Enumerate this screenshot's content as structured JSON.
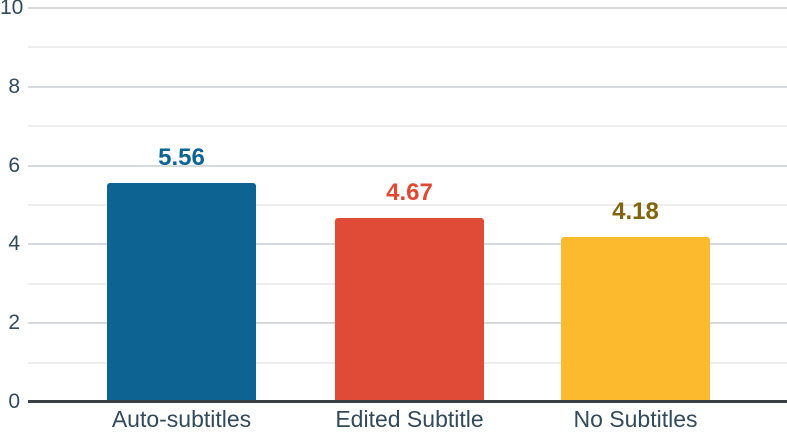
{
  "chart_data": {
    "type": "bar",
    "categories": [
      "Auto-subtitles",
      "Edited Subtitle",
      "No Subtitles"
    ],
    "values": [
      5.56,
      4.67,
      4.18
    ],
    "value_labels": [
      "5.56",
      "4.67",
      "4.18"
    ],
    "bar_colors": [
      "#0d6493",
      "#e04b37",
      "#fcbb2e"
    ],
    "value_label_colors": [
      "#0d6493",
      "#df4a35",
      "#7f650d"
    ],
    "title": "",
    "xlabel": "",
    "ylabel": "",
    "ylim": [
      0,
      10
    ],
    "yticks": [
      0,
      2,
      4,
      6,
      8,
      10
    ],
    "ytick_labels": [
      "0",
      "2",
      "4",
      "6",
      "8",
      "10"
    ],
    "grid_step": 1,
    "grid": true,
    "legend_position": "none",
    "axis_color": "#3b4045",
    "major_gridline_color": "#d7dadc",
    "minor_gridline_color": "#ededee",
    "tick_label_color": "#334a5b",
    "category_label_color": "#334a5b",
    "background_color": "#ffffff"
  }
}
